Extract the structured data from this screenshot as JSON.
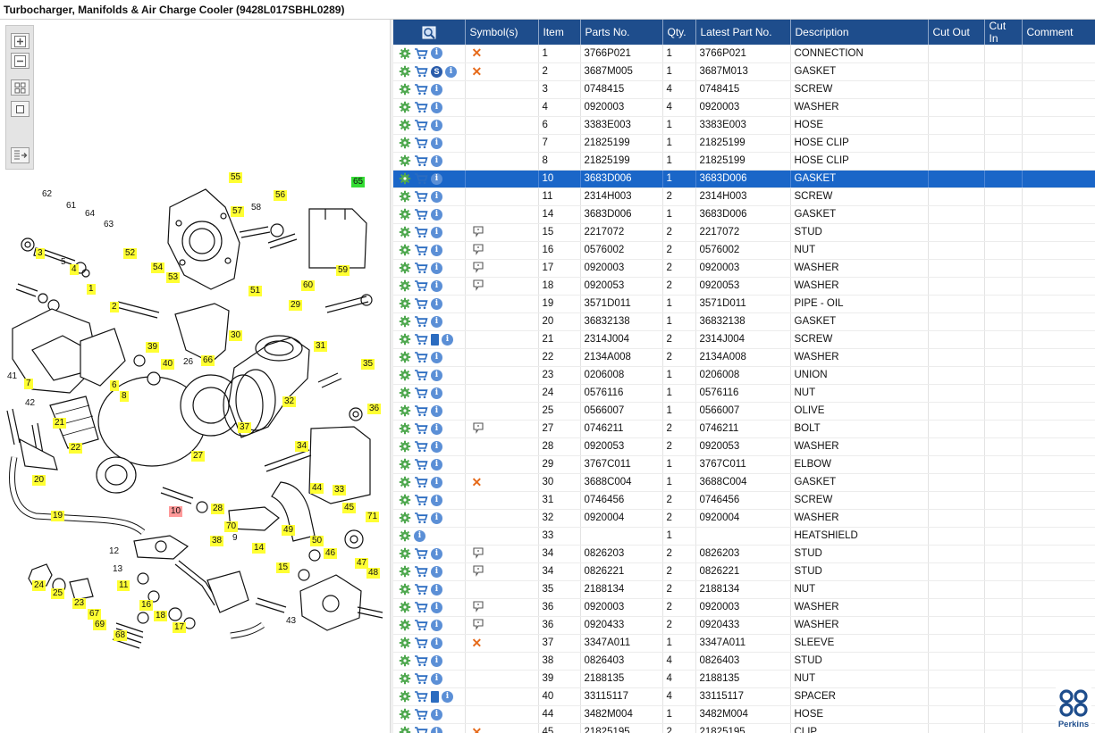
{
  "window": {
    "title": "Turbocharger, Manifolds & Air Charge Cooler (9428L017SBHL0289)"
  },
  "toolbox": {
    "buttons": [
      "zoom-in",
      "zoom-out",
      "fit-page",
      "actual-size",
      "export-parts"
    ]
  },
  "diagram": {
    "callouts": [
      {
        "label": "62",
        "style": "n"
      },
      {
        "label": "61",
        "style": "n"
      },
      {
        "label": "64",
        "style": "n"
      },
      {
        "label": "63",
        "style": "n"
      },
      {
        "label": "3",
        "style": "y"
      },
      {
        "label": "5",
        "style": "n"
      },
      {
        "label": "4",
        "style": "y"
      },
      {
        "label": "1",
        "style": "y"
      },
      {
        "label": "52",
        "style": "y"
      },
      {
        "label": "54",
        "style": "y"
      },
      {
        "label": "53",
        "style": "y"
      },
      {
        "label": "51",
        "style": "y"
      },
      {
        "label": "55",
        "style": "y"
      },
      {
        "label": "57",
        "style": "y"
      },
      {
        "label": "58",
        "style": "n"
      },
      {
        "label": "56",
        "style": "y"
      },
      {
        "label": "65",
        "style": "g"
      },
      {
        "label": "59",
        "style": "y"
      },
      {
        "label": "60",
        "style": "y"
      },
      {
        "label": "29",
        "style": "y"
      },
      {
        "label": "2",
        "style": "y"
      },
      {
        "label": "30",
        "style": "y"
      },
      {
        "label": "31",
        "style": "y"
      },
      {
        "label": "39",
        "style": "y"
      },
      {
        "label": "40",
        "style": "y"
      },
      {
        "label": "26",
        "style": "n"
      },
      {
        "label": "66",
        "style": "y"
      },
      {
        "label": "41",
        "style": "n"
      },
      {
        "label": "7",
        "style": "y"
      },
      {
        "label": "6",
        "style": "y"
      },
      {
        "label": "8",
        "style": "y"
      },
      {
        "label": "42",
        "style": "n"
      },
      {
        "label": "35",
        "style": "y"
      },
      {
        "label": "32",
        "style": "y"
      },
      {
        "label": "36",
        "style": "y"
      },
      {
        "label": "21",
        "style": "y"
      },
      {
        "label": "22",
        "style": "y"
      },
      {
        "label": "37",
        "style": "y"
      },
      {
        "label": "34",
        "style": "y"
      },
      {
        "label": "27",
        "style": "y"
      },
      {
        "label": "20",
        "style": "y"
      },
      {
        "label": "33",
        "style": "y"
      },
      {
        "label": "44",
        "style": "y"
      },
      {
        "label": "19",
        "style": "y"
      },
      {
        "label": "10",
        "style": "r"
      },
      {
        "label": "28",
        "style": "y"
      },
      {
        "label": "70",
        "style": "y"
      },
      {
        "label": "45",
        "style": "y"
      },
      {
        "label": "71",
        "style": "y"
      },
      {
        "label": "38",
        "style": "y"
      },
      {
        "label": "9",
        "style": "n"
      },
      {
        "label": "12",
        "style": "n"
      },
      {
        "label": "14",
        "style": "y"
      },
      {
        "label": "49",
        "style": "y"
      },
      {
        "label": "50",
        "style": "y"
      },
      {
        "label": "46",
        "style": "y"
      },
      {
        "label": "13",
        "style": "n"
      },
      {
        "label": "15",
        "style": "y"
      },
      {
        "label": "47",
        "style": "y"
      },
      {
        "label": "48",
        "style": "y"
      },
      {
        "label": "24",
        "style": "y"
      },
      {
        "label": "25",
        "style": "y"
      },
      {
        "label": "11",
        "style": "y"
      },
      {
        "label": "23",
        "style": "y"
      },
      {
        "label": "16",
        "style": "y"
      },
      {
        "label": "67",
        "style": "y"
      },
      {
        "label": "18",
        "style": "y"
      },
      {
        "label": "69",
        "style": "y"
      },
      {
        "label": "17",
        "style": "y"
      },
      {
        "label": "43",
        "style": "n"
      },
      {
        "label": "68",
        "style": "y"
      }
    ]
  },
  "table": {
    "columns": [
      "",
      "Symbol(s)",
      "Item",
      "Parts No.",
      "Qty.",
      "Latest Part No.",
      "Description",
      "Cut Out",
      "Cut In",
      "Comment"
    ],
    "rows": [
      {
        "icons": [
          "gear",
          "cart",
          "info"
        ],
        "symbol": "x",
        "item": "1",
        "part": "3766P021",
        "qty": "1",
        "latest": "3766P021",
        "desc": "CONNECTION"
      },
      {
        "icons": [
          "gear",
          "cart",
          "s",
          "info"
        ],
        "symbol": "x",
        "item": "2",
        "part": "3687M005",
        "qty": "1",
        "latest": "3687M013",
        "desc": "GASKET"
      },
      {
        "icons": [
          "gear",
          "cart",
          "info"
        ],
        "symbol": "",
        "item": "3",
        "part": "0748415",
        "qty": "4",
        "latest": "0748415",
        "desc": "SCREW"
      },
      {
        "icons": [
          "gear",
          "cart",
          "info"
        ],
        "symbol": "",
        "item": "4",
        "part": "0920003",
        "qty": "4",
        "latest": "0920003",
        "desc": "WASHER"
      },
      {
        "icons": [
          "gear",
          "cart",
          "info"
        ],
        "symbol": "",
        "item": "6",
        "part": "3383E003",
        "qty": "1",
        "latest": "3383E003",
        "desc": "HOSE"
      },
      {
        "icons": [
          "gear",
          "cart",
          "info"
        ],
        "symbol": "",
        "item": "7",
        "part": "21825199",
        "qty": "1",
        "latest": "21825199",
        "desc": "HOSE CLIP"
      },
      {
        "icons": [
          "gear",
          "cart",
          "info"
        ],
        "symbol": "",
        "item": "8",
        "part": "21825199",
        "qty": "1",
        "latest": "21825199",
        "desc": "HOSE CLIP"
      },
      {
        "icons": [
          "gear",
          "cart",
          "info"
        ],
        "symbol": "",
        "item": "10",
        "part": "3683D006",
        "qty": "1",
        "latest": "3683D006",
        "desc": "GASKET",
        "selected": true
      },
      {
        "icons": [
          "gear",
          "cart",
          "info"
        ],
        "symbol": "",
        "item": "11",
        "part": "2314H003",
        "qty": "2",
        "latest": "2314H003",
        "desc": "SCREW"
      },
      {
        "icons": [
          "gear",
          "cart",
          "info"
        ],
        "symbol": "",
        "item": "14",
        "part": "3683D006",
        "qty": "1",
        "latest": "3683D006",
        "desc": "GASKET"
      },
      {
        "icons": [
          "gear",
          "cart",
          "info"
        ],
        "symbol": "bubble",
        "item": "15",
        "part": "2217072",
        "qty": "2",
        "latest": "2217072",
        "desc": "STUD"
      },
      {
        "icons": [
          "gear",
          "cart",
          "info"
        ],
        "symbol": "bubble",
        "item": "16",
        "part": "0576002",
        "qty": "2",
        "latest": "0576002",
        "desc": "NUT"
      },
      {
        "icons": [
          "gear",
          "cart",
          "info"
        ],
        "symbol": "bubble",
        "item": "17",
        "part": "0920003",
        "qty": "2",
        "latest": "0920003",
        "desc": "WASHER"
      },
      {
        "icons": [
          "gear",
          "cart",
          "info"
        ],
        "symbol": "bubble",
        "item": "18",
        "part": "0920053",
        "qty": "2",
        "latest": "0920053",
        "desc": "WASHER"
      },
      {
        "icons": [
          "gear",
          "cart",
          "info"
        ],
        "symbol": "",
        "item": "19",
        "part": "3571D011",
        "qty": "1",
        "latest": "3571D011",
        "desc": "PIPE - OIL"
      },
      {
        "icons": [
          "gear",
          "cart",
          "info"
        ],
        "symbol": "",
        "item": "20",
        "part": "36832138",
        "qty": "1",
        "latest": "36832138",
        "desc": "GASKET"
      },
      {
        "icons": [
          "gear",
          "cart",
          "book",
          "info"
        ],
        "symbol": "",
        "item": "21",
        "part": "2314J004",
        "qty": "2",
        "latest": "2314J004",
        "desc": "SCREW"
      },
      {
        "icons": [
          "gear",
          "cart",
          "info"
        ],
        "symbol": "",
        "item": "22",
        "part": "2134A008",
        "qty": "2",
        "latest": "2134A008",
        "desc": "WASHER"
      },
      {
        "icons": [
          "gear",
          "cart",
          "info"
        ],
        "symbol": "",
        "item": "23",
        "part": "0206008",
        "qty": "1",
        "latest": "0206008",
        "desc": "UNION"
      },
      {
        "icons": [
          "gear",
          "cart",
          "info"
        ],
        "symbol": "",
        "item": "24",
        "part": "0576116",
        "qty": "1",
        "latest": "0576116",
        "desc": "NUT"
      },
      {
        "icons": [
          "gear",
          "cart",
          "info"
        ],
        "symbol": "",
        "item": "25",
        "part": "0566007",
        "qty": "1",
        "latest": "0566007",
        "desc": "OLIVE"
      },
      {
        "icons": [
          "gear",
          "cart",
          "info"
        ],
        "symbol": "bubble",
        "item": "27",
        "part": "0746211",
        "qty": "2",
        "latest": "0746211",
        "desc": "BOLT"
      },
      {
        "icons": [
          "gear",
          "cart",
          "info"
        ],
        "symbol": "",
        "item": "28",
        "part": "0920053",
        "qty": "2",
        "latest": "0920053",
        "desc": "WASHER"
      },
      {
        "icons": [
          "gear",
          "cart",
          "info"
        ],
        "symbol": "",
        "item": "29",
        "part": "3767C011",
        "qty": "1",
        "latest": "3767C011",
        "desc": "ELBOW"
      },
      {
        "icons": [
          "gear",
          "cart",
          "info"
        ],
        "symbol": "x",
        "item": "30",
        "part": "3688C004",
        "qty": "1",
        "latest": "3688C004",
        "desc": "GASKET"
      },
      {
        "icons": [
          "gear",
          "cart",
          "info"
        ],
        "symbol": "",
        "item": "31",
        "part": "0746456",
        "qty": "2",
        "latest": "0746456",
        "desc": "SCREW"
      },
      {
        "icons": [
          "gear",
          "cart",
          "info"
        ],
        "symbol": "",
        "item": "32",
        "part": "0920004",
        "qty": "2",
        "latest": "0920004",
        "desc": "WASHER"
      },
      {
        "icons": [
          "gear",
          "info"
        ],
        "symbol": "",
        "item": "33",
        "part": "",
        "qty": "1",
        "latest": "",
        "desc": "HEATSHIELD"
      },
      {
        "icons": [
          "gear",
          "cart",
          "info"
        ],
        "symbol": "bubble",
        "item": "34",
        "part": "0826203",
        "qty": "2",
        "latest": "0826203",
        "desc": "STUD"
      },
      {
        "icons": [
          "gear",
          "cart",
          "info"
        ],
        "symbol": "bubble",
        "item": "34",
        "part": "0826221",
        "qty": "2",
        "latest": "0826221",
        "desc": "STUD"
      },
      {
        "icons": [
          "gear",
          "cart",
          "info"
        ],
        "symbol": "",
        "item": "35",
        "part": "2188134",
        "qty": "2",
        "latest": "2188134",
        "desc": "NUT"
      },
      {
        "icons": [
          "gear",
          "cart",
          "info"
        ],
        "symbol": "bubble",
        "item": "36",
        "part": "0920003",
        "qty": "2",
        "latest": "0920003",
        "desc": "WASHER"
      },
      {
        "icons": [
          "gear",
          "cart",
          "info"
        ],
        "symbol": "bubble",
        "item": "36",
        "part": "0920433",
        "qty": "2",
        "latest": "0920433",
        "desc": "WASHER"
      },
      {
        "icons": [
          "gear",
          "cart",
          "info"
        ],
        "symbol": "x",
        "item": "37",
        "part": "3347A011",
        "qty": "1",
        "latest": "3347A011",
        "desc": "SLEEVE"
      },
      {
        "icons": [
          "gear",
          "cart",
          "info"
        ],
        "symbol": "",
        "item": "38",
        "part": "0826403",
        "qty": "4",
        "latest": "0826403",
        "desc": "STUD"
      },
      {
        "icons": [
          "gear",
          "cart",
          "info"
        ],
        "symbol": "",
        "item": "39",
        "part": "2188135",
        "qty": "4",
        "latest": "2188135",
        "desc": "NUT"
      },
      {
        "icons": [
          "gear",
          "cart",
          "book",
          "info"
        ],
        "symbol": "",
        "item": "40",
        "part": "33115117",
        "qty": "4",
        "latest": "33115117",
        "desc": "SPACER"
      },
      {
        "icons": [
          "gear",
          "cart",
          "info"
        ],
        "symbol": "",
        "item": "44",
        "part": "3482M004",
        "qty": "1",
        "latest": "3482M004",
        "desc": "HOSE"
      },
      {
        "icons": [
          "gear",
          "cart",
          "info"
        ],
        "symbol": "x",
        "item": "45",
        "part": "21825195",
        "qty": "2",
        "latest": "21825195",
        "desc": "CLIP"
      }
    ]
  },
  "brand": {
    "name": "Perkins",
    "color": "#1e4d8c"
  },
  "colors": {
    "header": "#1e4d8c",
    "selection": "#1a66c8",
    "callout_yellow": "#ffff33",
    "callout_green": "#33dd33",
    "callout_red": "#ff9999"
  }
}
